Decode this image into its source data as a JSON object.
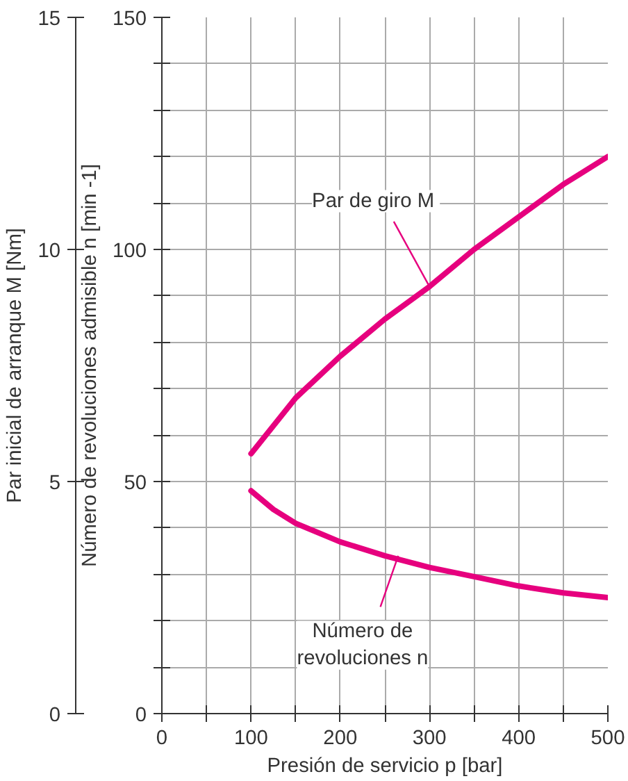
{
  "chart_data": {
    "type": "line",
    "xlabel": "Presión de servicio p [bar]",
    "ylabel": "Número de revoluciones admisible n [min -1]",
    "y2label": "Par inicial de arranque M [Nm]",
    "xlim": [
      0,
      500
    ],
    "xticks": [
      0,
      {
        "value": 50,
        "label": null
      },
      100,
      {
        "value": 150,
        "label": null
      },
      200,
      {
        "value": 250,
        "label": null
      },
      300,
      {
        "value": 350,
        "label": null
      },
      400,
      {
        "value": 450,
        "label": null
      },
      500
    ],
    "ylim": [
      0,
      150
    ],
    "yticks": [
      0,
      {
        "value": 10,
        "label": null
      },
      {
        "value": 20,
        "label": null
      },
      {
        "value": 30,
        "label": null
      },
      {
        "value": 40,
        "label": null
      },
      50,
      {
        "value": 60,
        "label": null
      },
      {
        "value": 70,
        "label": null
      },
      {
        "value": 80,
        "label": null
      },
      {
        "value": 90,
        "label": null
      },
      100,
      {
        "value": 110,
        "label": null
      },
      {
        "value": 120,
        "label": null
      },
      {
        "value": 130,
        "label": null
      },
      {
        "value": 140,
        "label": null
      },
      150
    ],
    "y2lim": [
      0,
      15
    ],
    "y2ticks": [
      0,
      5,
      10,
      15
    ],
    "grid": true,
    "line_style": "solid",
    "series": [
      {
        "color": "#e6007e",
        "axis": "y2",
        "x": [
          100,
          150,
          200,
          250,
          300,
          350,
          400,
          450,
          500
        ],
        "values": [
          5.6,
          6.8,
          7.7,
          8.5,
          9.2,
          10.0,
          10.7,
          11.4,
          12.0
        ]
      },
      {
        "color": "#e6007e",
        "x": [
          100,
          125,
          150,
          200,
          250,
          300,
          350,
          400,
          450,
          500
        ],
        "values": [
          48,
          44,
          41,
          37,
          34,
          31.5,
          29.5,
          27.5,
          26,
          25
        ]
      }
    ],
    "annotations": [
      {
        "text": "Par de giro  M",
        "x": 300,
        "y": 92
      },
      {
        "text": "Número de revoluciones n",
        "x": 265,
        "y": 34
      }
    ]
  }
}
